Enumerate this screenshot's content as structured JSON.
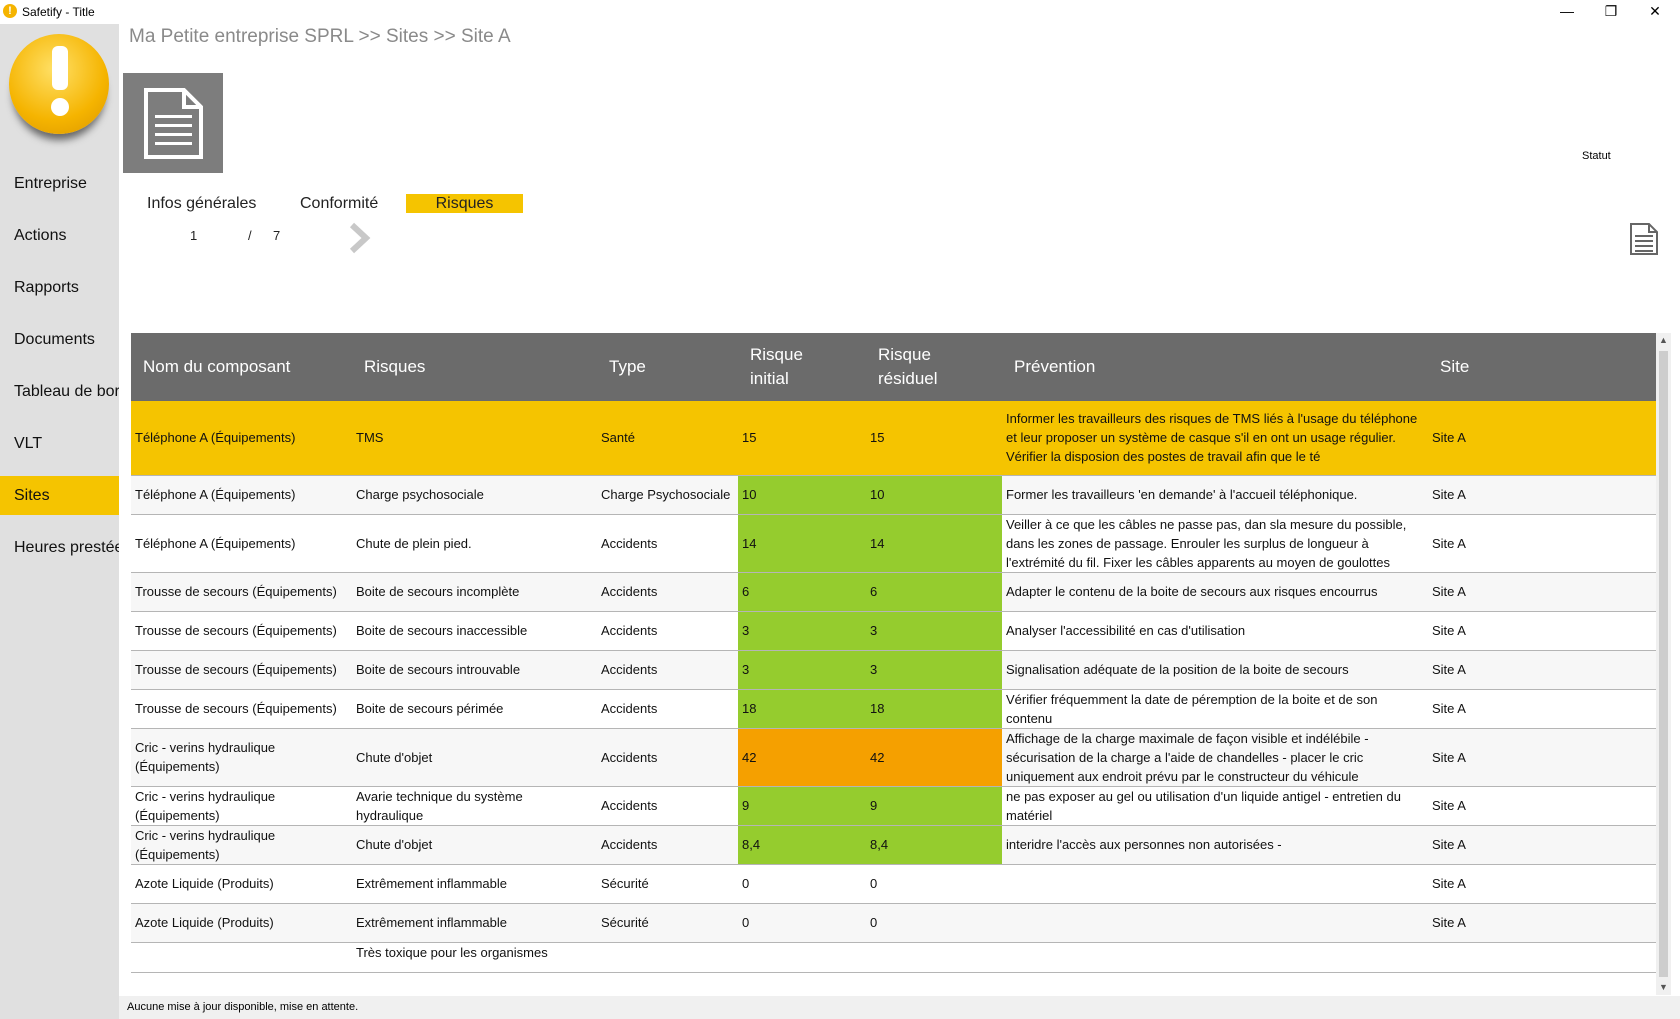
{
  "window": {
    "title": "Safetify - Title",
    "minimize": "—",
    "restore": "❐",
    "close": "✕"
  },
  "sidebar": {
    "items": [
      {
        "label": "Entreprise"
      },
      {
        "label": "Actions"
      },
      {
        "label": "Rapports"
      },
      {
        "label": "Documents"
      },
      {
        "label": "Tableau de bord"
      },
      {
        "label": "VLT"
      },
      {
        "label": "Sites",
        "active": true
      },
      {
        "label": "Heures prestées"
      }
    ]
  },
  "header": {
    "breadcrumb": "Ma Petite entreprise SPRL >> Sites >> Site A",
    "status_label": "Statut"
  },
  "tabs": [
    {
      "label": "Infos générales"
    },
    {
      "label": "Conformité"
    },
    {
      "label": "Risques",
      "active": true
    }
  ],
  "pager": {
    "current": "1",
    "separator": "/",
    "total": "7"
  },
  "colors": {
    "accent": "#f5c400",
    "green": "#95cc2e",
    "orange": "#f5a000",
    "header": "#6b6b6b"
  },
  "table": {
    "columns": [
      "Nom du composant",
      "Risques",
      "Type",
      "Risque initial",
      "Risque résiduel",
      "Prévention",
      "Site"
    ],
    "rows": [
      {
        "name": "Téléphone A (Équipements)",
        "risk": "TMS",
        "type": "Santé",
        "initial": "15",
        "residual": "15",
        "prevention": "Informer les travailleurs des risques de TMS liés à l'usage du téléphone et leur proposer un système de casque s'il en ont un usage régulier. Vérifier la disposion des postes de travail afin que le té",
        "site": "Site A",
        "level": "selected"
      },
      {
        "name": "Téléphone A (Équipements)",
        "risk": "Charge psychosociale",
        "type": "Charge Psychosociale",
        "initial": "10",
        "residual": "10",
        "prevention": "Former les travailleurs 'en demande' à l'accueil téléphonique.",
        "site": "Site A",
        "level": "green"
      },
      {
        "name": "Téléphone A (Équipements)",
        "risk": "Chute de plein pied.",
        "type": "Accidents",
        "initial": "14",
        "residual": "14",
        "prevention": "Veiller à ce que les câbles ne passe pas, dan sla mesure du possible, dans les zones de passage. Enrouler les surplus de longueur à l'extrémité du fil. Fixer les câbles apparents au moyen de goulottes",
        "site": "Site A",
        "level": "green"
      },
      {
        "name": "Trousse de secours (Équipements)",
        "risk": "Boite de secours incomplète",
        "type": "Accidents",
        "initial": "6",
        "residual": "6",
        "prevention": "Adapter le contenu de la boite de secours aux risques encourrus",
        "site": "Site A",
        "level": "green"
      },
      {
        "name": "Trousse de secours (Équipements)",
        "risk": "Boite de secours inaccessible",
        "type": "Accidents",
        "initial": "3",
        "residual": "3",
        "prevention": "Analyser l'accessibilité en cas d'utilisation",
        "site": "Site A",
        "level": "green"
      },
      {
        "name": "Trousse de secours (Équipements)",
        "risk": "Boite de secours introuvable",
        "type": "Accidents",
        "initial": "3",
        "residual": "3",
        "prevention": "Signalisation adéquate de la position de la boite de secours",
        "site": "Site A",
        "level": "green"
      },
      {
        "name": "Trousse de secours (Équipements)",
        "risk": "Boite de secours périmée",
        "type": "Accidents",
        "initial": "18",
        "residual": "18",
        "prevention": "Vérifier fréquemment la date de péremption de la boite et de son contenu",
        "site": "Site A",
        "level": "green"
      },
      {
        "name": "Cric - verins hydraulique (Équipements)",
        "risk": "Chute d'objet",
        "type": "Accidents",
        "initial": "42",
        "residual": "42",
        "prevention": "Affichage de la charge maximale de façon visible et indélébile - sécurisation de la charge a l'aide de chandelles - placer le cric uniquement aux endroit prévu par le constructeur du véhicule",
        "site": "Site A",
        "level": "orange"
      },
      {
        "name": "Cric - verins hydraulique (Équipements)",
        "risk": "Avarie technique du système hydraulique",
        "type": "Accidents",
        "initial": "9",
        "residual": "9",
        "prevention": "ne pas exposer au gel ou utilisation d'un liquide antigel - entretien du matériel",
        "site": "Site A",
        "level": "green"
      },
      {
        "name": "Cric - verins hydraulique (Équipements)",
        "risk": "Chute d'objet",
        "type": "Accidents",
        "initial": "8,4",
        "residual": "8,4",
        "prevention": "interidre l'accès aux personnes non autorisées -",
        "site": "Site A",
        "level": "green"
      },
      {
        "name": "Azote Liquide (Produits)",
        "risk": "Extrêmement inflammable",
        "type": "Sécurité",
        "initial": "0",
        "residual": "0",
        "prevention": "",
        "site": "Site A",
        "level": "none"
      },
      {
        "name": "Azote Liquide (Produits)",
        "risk": "Extrêmement inflammable",
        "type": "Sécurité",
        "initial": "0",
        "residual": "0",
        "prevention": "",
        "site": "Site A",
        "level": "none"
      },
      {
        "name": "",
        "risk": "Très toxique pour les organismes",
        "type": "",
        "initial": "",
        "residual": "",
        "prevention": "",
        "site": "",
        "level": "none"
      }
    ]
  },
  "statusbar": {
    "text": "Aucune mise à jour disponible, mise en attente."
  }
}
